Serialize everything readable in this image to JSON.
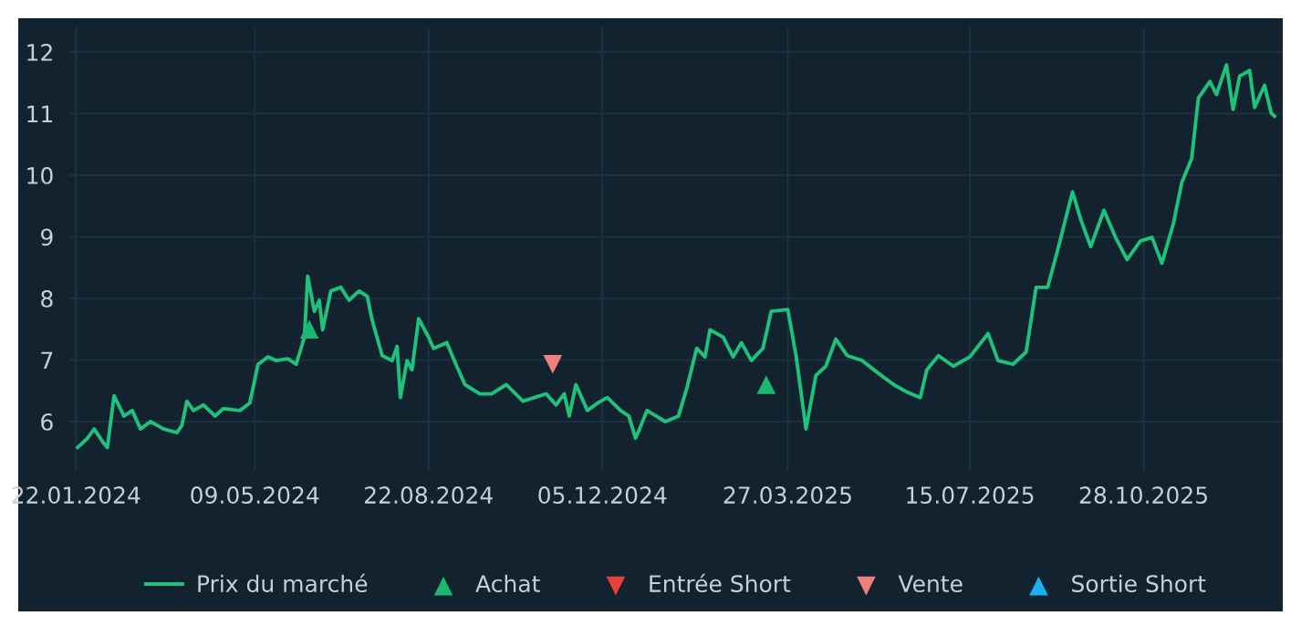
{
  "chart_data": {
    "type": "line",
    "xlim": [
      "2024-01-18",
      "2026-01-20"
    ],
    "ylim": [
      5.2,
      12.4
    ],
    "xticks": [
      {
        "value": "2024-01-22",
        "label": "22.01.2024"
      },
      {
        "value": "2024-05-09",
        "label": "09.05.2024"
      },
      {
        "value": "2024-08-22",
        "label": "22.08.2024"
      },
      {
        "value": "2024-12-05",
        "label": "05.12.2024"
      },
      {
        "value": "2025-03-27",
        "label": "27.03.2025"
      },
      {
        "value": "2025-07-15",
        "label": "15.07.2025"
      },
      {
        "value": "2025-10-28",
        "label": "28.10.2025"
      }
    ],
    "yticks": [
      6,
      7,
      8,
      9,
      10,
      11,
      12
    ],
    "grid": true,
    "legend": "bottom",
    "series": [
      {
        "name": "Prix du marché",
        "color": "#1ec27a",
        "marker": "none",
        "x": [
          "2024-01-23",
          "2024-01-29",
          "2024-02-02",
          "2024-02-08",
          "2024-02-10",
          "2024-02-14",
          "2024-02-20",
          "2024-02-25",
          "2024-03-01",
          "2024-03-07",
          "2024-03-15",
          "2024-03-23",
          "2024-03-26",
          "2024-03-29",
          "2024-04-02",
          "2024-04-08",
          "2024-04-15",
          "2024-04-20",
          "2024-04-30",
          "2024-05-06",
          "2024-05-11",
          "2024-05-17",
          "2024-05-22",
          "2024-05-29",
          "2024-06-03",
          "2024-06-08",
          "2024-06-10",
          "2024-06-14",
          "2024-06-17",
          "2024-06-19",
          "2024-06-24",
          "2024-06-30",
          "2024-07-05",
          "2024-07-11",
          "2024-07-16",
          "2024-07-19",
          "2024-07-25",
          "2024-07-31",
          "2024-08-03",
          "2024-08-05",
          "2024-08-09",
          "2024-08-12",
          "2024-08-16",
          "2024-08-22",
          "2024-08-25",
          "2024-09-02",
          "2024-09-08",
          "2024-09-13",
          "2024-09-22",
          "2024-09-29",
          "2024-10-08",
          "2024-10-18",
          "2024-10-25",
          "2024-11-01",
          "2024-11-07",
          "2024-11-12",
          "2024-11-15",
          "2024-11-19",
          "2024-11-26",
          "2024-12-02",
          "2024-12-08",
          "2024-12-16",
          "2024-12-21",
          "2024-12-25",
          "2024-12-27",
          "2025-01-01",
          "2025-01-12",
          "2025-01-20",
          "2025-01-25",
          "2025-01-31",
          "2025-02-05",
          "2025-02-08",
          "2025-02-16",
          "2025-02-22",
          "2025-02-27",
          "2025-03-05",
          "2025-03-12",
          "2025-03-17",
          "2025-03-27",
          "2025-04-01",
          "2025-04-07",
          "2025-04-13",
          "2025-04-19",
          "2025-04-25",
          "2025-05-02",
          "2025-05-11",
          "2025-05-21",
          "2025-05-30",
          "2025-06-07",
          "2025-06-15",
          "2025-06-19",
          "2025-06-26",
          "2025-07-05",
          "2025-07-15",
          "2025-07-26",
          "2025-08-01",
          "2025-08-10",
          "2025-08-18",
          "2025-08-24",
          "2025-08-31",
          "2025-09-06",
          "2025-09-15",
          "2025-09-20",
          "2025-09-26",
          "2025-10-04",
          "2025-10-11",
          "2025-10-18",
          "2025-10-26",
          "2025-11-02",
          "2025-11-08",
          "2025-11-15",
          "2025-11-20",
          "2025-11-26",
          "2025-11-30",
          "2025-12-07",
          "2025-12-11",
          "2025-12-17",
          "2025-12-21",
          "2025-12-25",
          "2025-12-31",
          "2026-01-03",
          "2026-01-09",
          "2026-01-13",
          "2026-01-15"
        ],
        "values": [
          5.58,
          5.73,
          5.88,
          5.64,
          5.58,
          6.42,
          6.09,
          6.18,
          5.88,
          6.0,
          5.88,
          5.82,
          5.94,
          6.33,
          6.18,
          6.27,
          6.09,
          6.21,
          6.18,
          6.3,
          6.93,
          7.05,
          6.99,
          7.02,
          6.93,
          7.37,
          8.36,
          7.79,
          7.97,
          7.49,
          8.12,
          8.18,
          7.97,
          8.12,
          8.03,
          7.64,
          7.07,
          6.99,
          7.22,
          6.39,
          6.99,
          6.84,
          7.67,
          7.37,
          7.19,
          7.28,
          6.9,
          6.6,
          6.45,
          6.45,
          6.6,
          6.33,
          6.39,
          6.45,
          6.27,
          6.45,
          6.09,
          6.6,
          6.18,
          6.3,
          6.39,
          6.18,
          6.09,
          5.73,
          5.85,
          6.18,
          6.0,
          6.09,
          6.54,
          7.19,
          7.05,
          7.49,
          7.37,
          7.05,
          7.28,
          6.99,
          7.19,
          7.79,
          7.82,
          7.07,
          5.88,
          6.75,
          6.9,
          7.34,
          7.07,
          6.99,
          6.78,
          6.6,
          6.48,
          6.39,
          6.84,
          7.07,
          6.9,
          7.05,
          7.43,
          6.99,
          6.93,
          7.13,
          8.18,
          8.18,
          8.78,
          9.73,
          9.28,
          8.84,
          9.43,
          8.99,
          8.63,
          8.93,
          8.99,
          8.57,
          9.22,
          9.88,
          10.27,
          11.25,
          11.52,
          11.31,
          11.79,
          11.07,
          11.61,
          11.7,
          11.1,
          11.46,
          11.01,
          10.96
        ]
      },
      {
        "name": "Achat",
        "type": "scatter",
        "color": "#1db86f",
        "marker": "triangle",
        "x": [
          "2024-06-11",
          "2025-03-14"
        ],
        "values": [
          7.5,
          6.6
        ]
      },
      {
        "name": "Entrée Short",
        "type": "scatter",
        "color": "#e8403a",
        "marker": "triangle_down"
      },
      {
        "name": "Vente",
        "type": "scatter",
        "color": "#f08080",
        "marker": "triangle_down",
        "x": [
          "2024-11-05"
        ],
        "values": [
          6.93
        ]
      },
      {
        "name": "Sortie Short",
        "type": "scatter",
        "color": "#1ab0f0",
        "marker": "triangle"
      }
    ]
  }
}
